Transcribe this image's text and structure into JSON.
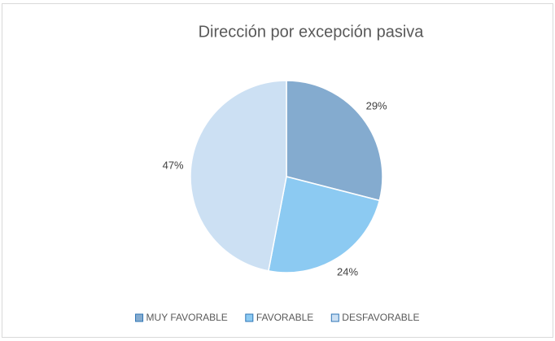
{
  "chart_data": {
    "type": "pie",
    "title": "Dirección por excepción pasiva",
    "categories": [
      "MUY FAVORABLE",
      "FAVORABLE",
      "DESFAVORABLE"
    ],
    "values": [
      29,
      24,
      47
    ],
    "value_labels": [
      "29%",
      "24%",
      "47%"
    ],
    "colors": [
      "#84abcf",
      "#8ccaf2",
      "#cce0f3"
    ],
    "legend": "bottom"
  }
}
